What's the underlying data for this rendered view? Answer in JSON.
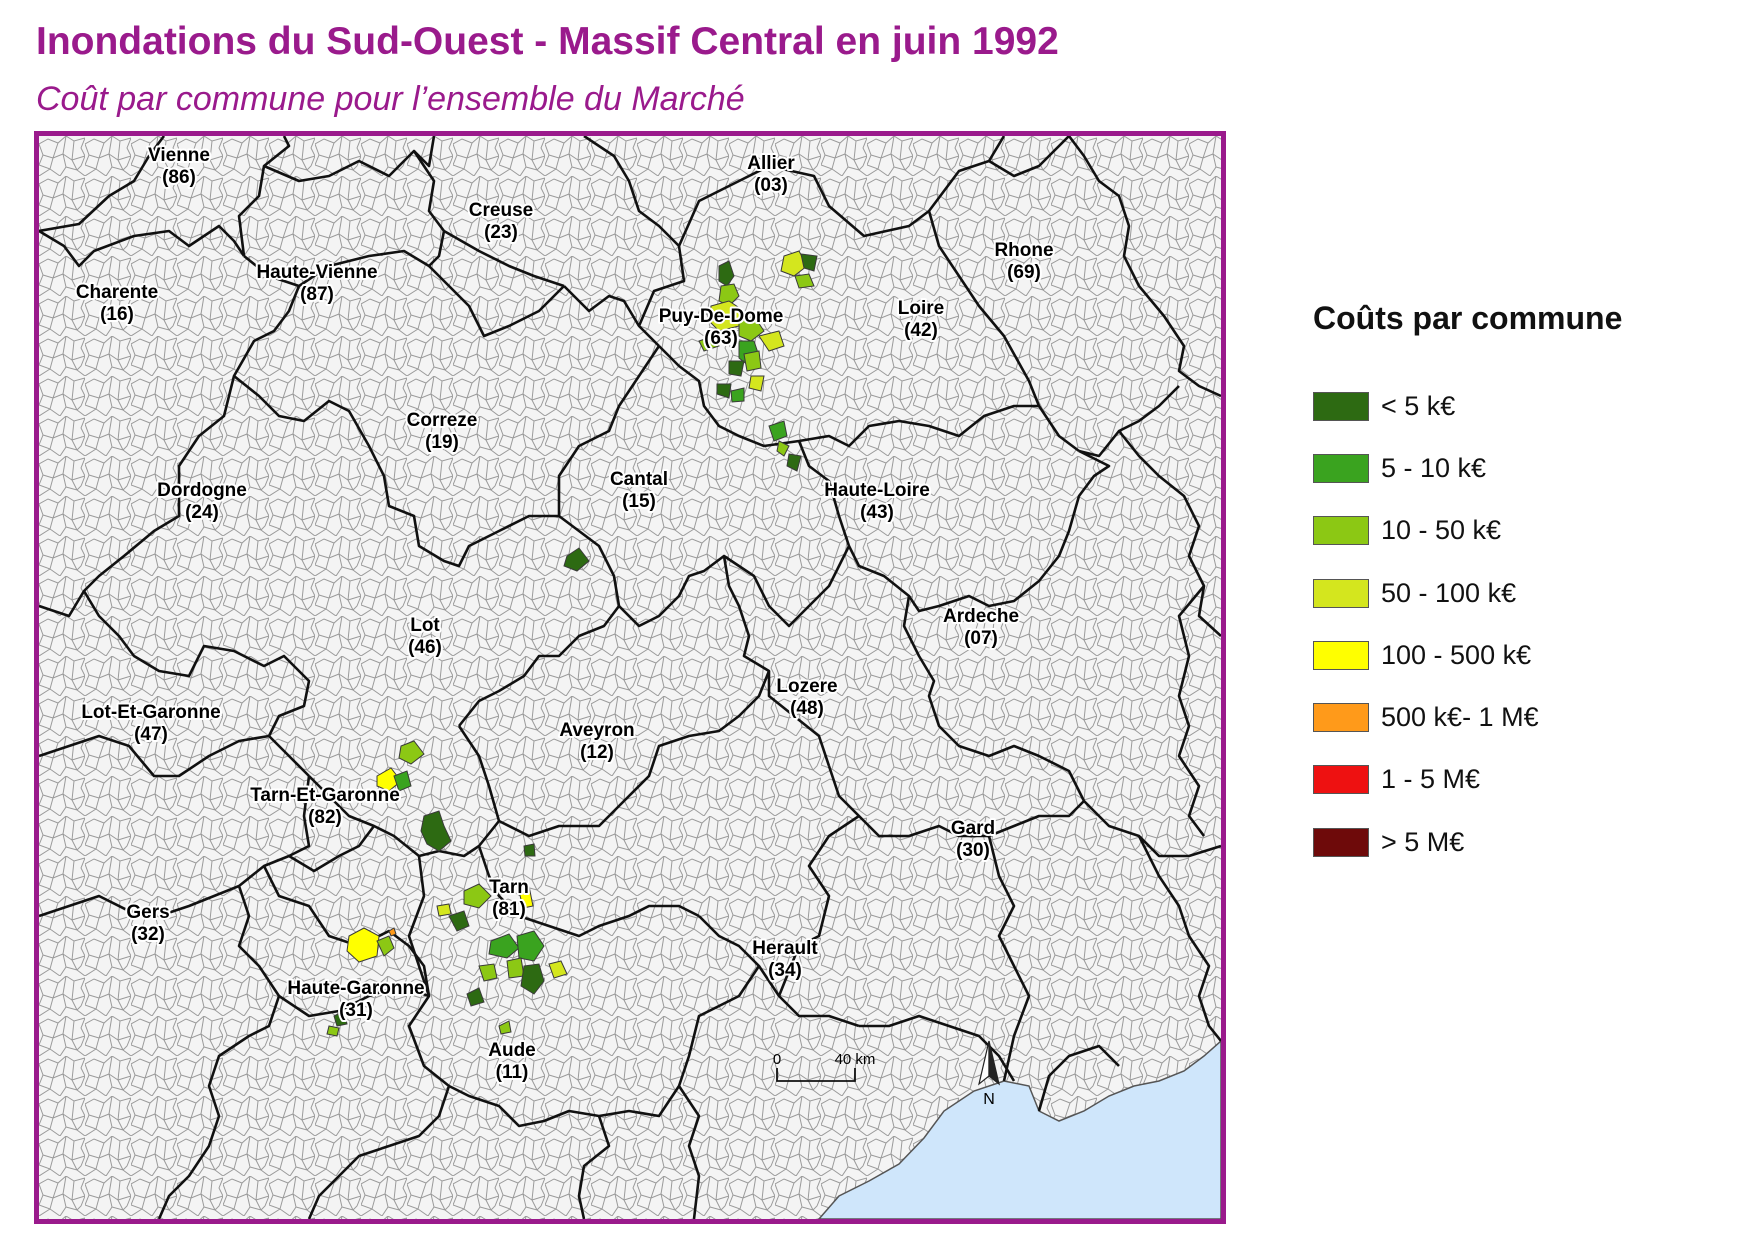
{
  "title": "Inondations du Sud-Ouest - Massif Central en juin 1992",
  "subtitle": "Coût par commune pour l’ensemble du Marché",
  "map": {
    "sea_color": "#cfe6fb",
    "commune_border_color": "#9a9a9a",
    "department_border_color": "#111111",
    "departments": [
      {
        "name": "Vienne",
        "code": "(86)"
      },
      {
        "name": "Allier",
        "code": "(03)"
      },
      {
        "name": "Creuse",
        "code": "(23)"
      },
      {
        "name": "Rhone",
        "code": "(69)"
      },
      {
        "name": "Charente",
        "code": "(16)"
      },
      {
        "name": "Haute-Vienne",
        "code": "(87)"
      },
      {
        "name": "Puy-De-Dome",
        "code": "(63)"
      },
      {
        "name": "Loire",
        "code": "(42)"
      },
      {
        "name": "Correze",
        "code": "(19)"
      },
      {
        "name": "Cantal",
        "code": "(15)"
      },
      {
        "name": "Dordogne",
        "code": "(24)"
      },
      {
        "name": "Haute-Loire",
        "code": "(43)"
      },
      {
        "name": "Lot",
        "code": "(46)"
      },
      {
        "name": "Ardeche",
        "code": "(07)"
      },
      {
        "name": "Lozere",
        "code": "(48)"
      },
      {
        "name": "Lot-Et-Garonne",
        "code": "(47)"
      },
      {
        "name": "Aveyron",
        "code": "(12)"
      },
      {
        "name": "Tarn-Et-Garonne",
        "code": "(82)"
      },
      {
        "name": "Gard",
        "code": "(30)"
      },
      {
        "name": "Tarn",
        "code": "(81)"
      },
      {
        "name": "Gers",
        "code": "(32)"
      },
      {
        "name": "Herault",
        "code": "(34)"
      },
      {
        "name": "Haute-Garonne",
        "code": "(31)"
      },
      {
        "name": "Aude",
        "code": "(11)"
      }
    ],
    "scale_bar": {
      "start_label": "0",
      "end_label": "40 km"
    },
    "north_arrow_label": "N"
  },
  "legend": {
    "title": "Coûts par commune",
    "items": [
      {
        "label": "< 5 k€",
        "color": "#2d6a12"
      },
      {
        "label": "5 - 10 k€",
        "color": "#3aa31f"
      },
      {
        "label": "10 - 50 k€",
        "color": "#8cc814"
      },
      {
        "label": "50 - 100 k€",
        "color": "#d4e61e"
      },
      {
        "label": "100 - 500 k€",
        "color": "#ffff00"
      },
      {
        "label": "500 k€- 1 M€",
        "color": "#ff9a1a"
      },
      {
        "label": "1 - 5 M€",
        "color": "#ee1111"
      },
      {
        "label": "> 5 M€",
        "color": "#6e0a0a"
      }
    ]
  }
}
